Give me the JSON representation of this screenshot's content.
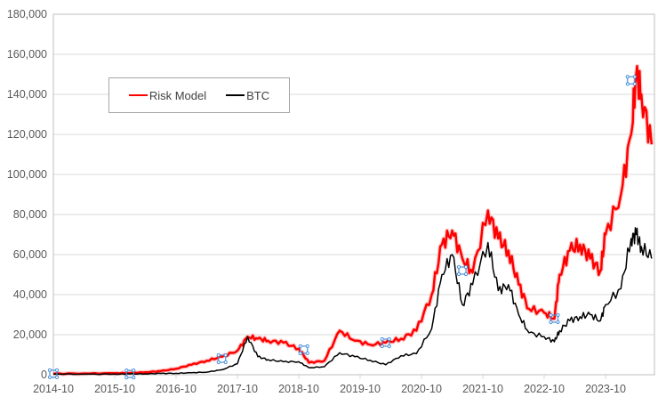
{
  "chart_data": {
    "type": "line",
    "title": "",
    "xlabel": "",
    "ylabel": "",
    "ylim": [
      0,
      180000
    ],
    "yticks": [
      "0",
      "20,000",
      "40,000",
      "60,000",
      "80,000",
      "100,000",
      "120,000",
      "140,000",
      "160,000",
      "180,000"
    ],
    "xticks": [
      "2014-10",
      "2015-10",
      "2016-10",
      "2017-10",
      "2018-10",
      "2019-10",
      "2020-10",
      "2021-10",
      "2022-10",
      "2023-10"
    ],
    "grid": "horizontal",
    "legend_position": "upper-left inside",
    "x": [
      "2014-10",
      "2015-04",
      "2015-10",
      "2016-01",
      "2016-04",
      "2016-07",
      "2016-10",
      "2017-01",
      "2017-04",
      "2017-07",
      "2017-10",
      "2017-12",
      "2018-02",
      "2018-04",
      "2018-07",
      "2018-10",
      "2018-12",
      "2019-03",
      "2019-06",
      "2019-09",
      "2019-12",
      "2020-03",
      "2020-06",
      "2020-09",
      "2020-12",
      "2021-02",
      "2021-04",
      "2021-06",
      "2021-08",
      "2021-11",
      "2022-01",
      "2022-03",
      "2022-05",
      "2022-07",
      "2022-10",
      "2022-12",
      "2023-01",
      "2023-03",
      "2023-05",
      "2023-07",
      "2023-09",
      "2023-10",
      "2024-01",
      "2024-03",
      "2024-04",
      "2024-05",
      "2024-07"
    ],
    "series": [
      {
        "name": "Risk Model",
        "color": "#ff0000",
        "values": [
          500,
          600,
          700,
          900,
          1200,
          1800,
          3000,
          5000,
          7000,
          9000,
          12000,
          19000,
          18000,
          17000,
          16000,
          13000,
          6000,
          7000,
          22000,
          17000,
          15000,
          16000,
          18000,
          22000,
          40000,
          65000,
          72000,
          58000,
          51000,
          82000,
          68000,
          62000,
          45000,
          33000,
          31000,
          28000,
          50000,
          62000,
          65000,
          58000,
          52000,
          70000,
          90000,
          120000,
          150000,
          140000,
          115000
        ]
      },
      {
        "name": "BTC",
        "color": "#000000",
        "values": [
          350,
          250,
          300,
          400,
          450,
          650,
          700,
          1000,
          1300,
          2500,
          5500,
          19000,
          9000,
          7500,
          6500,
          6500,
          3500,
          4000,
          11000,
          9000,
          7200,
          5000,
          9500,
          10500,
          23000,
          50000,
          60000,
          35000,
          45000,
          66000,
          42000,
          45000,
          30000,
          21000,
          19000,
          16500,
          22000,
          27000,
          29000,
          30000,
          27000,
          35000,
          43000,
          68000,
          70000,
          64000,
          58000
        ]
      }
    ],
    "markers": [
      {
        "x": "2014-10",
        "value": 500
      },
      {
        "x": "2016-01",
        "value": 400
      },
      {
        "x": "2017-07",
        "value": 8000
      },
      {
        "x": "2018-11",
        "value": 12500
      },
      {
        "x": "2020-03",
        "value": 16000
      },
      {
        "x": "2021-06",
        "value": 52000
      },
      {
        "x": "2022-12",
        "value": 28000
      },
      {
        "x": "2024-03",
        "value": 147000
      }
    ]
  },
  "legend": {
    "items": [
      {
        "label": "Risk Model",
        "color": "#ff0000"
      },
      {
        "label": "BTC",
        "color": "#000000"
      }
    ]
  }
}
